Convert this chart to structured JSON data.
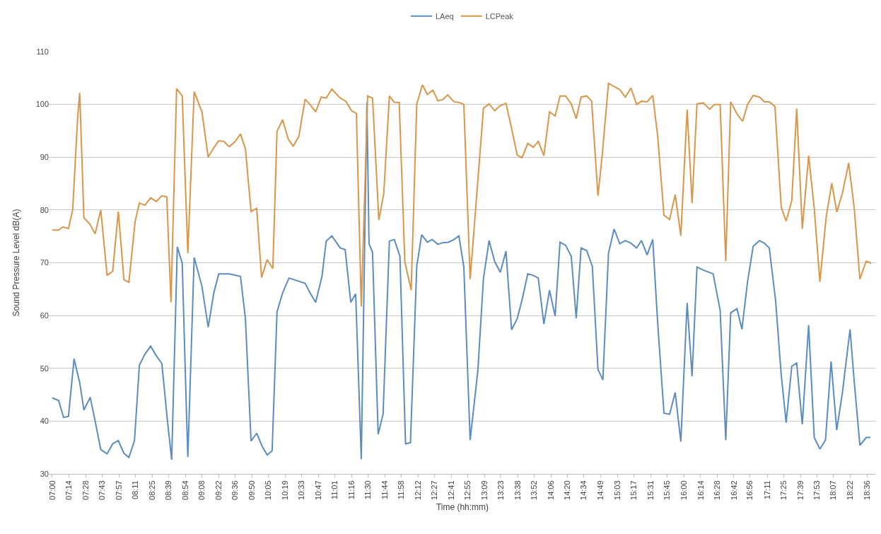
{
  "chart_data": {
    "type": "line",
    "xlabel": "Time (hh:mm)",
    "ylabel": "Sound Pressure Level dB(A)",
    "ylim": [
      30,
      110
    ],
    "yticks": [
      30,
      40,
      50,
      60,
      70,
      80,
      90,
      100,
      110
    ],
    "xlim": [
      6.96,
      18.72
    ],
    "xticks": [
      {
        "value": 7,
        "label": "07:00"
      },
      {
        "value": 7.2367,
        "label": "07:14"
      },
      {
        "value": 7.4735,
        "label": "07:28"
      },
      {
        "value": 7.7102,
        "label": "07:43"
      },
      {
        "value": 7.9469,
        "label": "07:57"
      },
      {
        "value": 8.1837,
        "label": "08:11"
      },
      {
        "value": 8.4204,
        "label": "08:25"
      },
      {
        "value": 8.6571,
        "label": "08:39"
      },
      {
        "value": 8.8939,
        "label": "08:54"
      },
      {
        "value": 9.1306,
        "label": "09:08"
      },
      {
        "value": 9.3673,
        "label": "09:22"
      },
      {
        "value": 9.6041,
        "label": "09:36"
      },
      {
        "value": 9.8408,
        "label": "09:50"
      },
      {
        "value": 10.0776,
        "label": "10:05"
      },
      {
        "value": 10.3143,
        "label": "10:19"
      },
      {
        "value": 10.551,
        "label": "10:33"
      },
      {
        "value": 10.7878,
        "label": "10:47"
      },
      {
        "value": 11.0245,
        "label": "11:01"
      },
      {
        "value": 11.2612,
        "label": "11:16"
      },
      {
        "value": 11.498,
        "label": "11:30"
      },
      {
        "value": 11.7347,
        "label": "11:44"
      },
      {
        "value": 11.9714,
        "label": "11:58"
      },
      {
        "value": 12.2082,
        "label": "12:12"
      },
      {
        "value": 12.4449,
        "label": "12:27"
      },
      {
        "value": 12.6816,
        "label": "12:41"
      },
      {
        "value": 12.9184,
        "label": "12:55"
      },
      {
        "value": 13.1551,
        "label": "13:09"
      },
      {
        "value": 13.3833,
        "label": "13:23"
      },
      {
        "value": 13.6286,
        "label": "13:38"
      },
      {
        "value": 13.8653,
        "label": "13:52"
      },
      {
        "value": 14.102,
        "label": "14:06"
      },
      {
        "value": 14.3388,
        "label": "14:20"
      },
      {
        "value": 14.5667,
        "label": "14:34"
      },
      {
        "value": 14.8122,
        "label": "14:49"
      },
      {
        "value": 15.049,
        "label": "15:03"
      },
      {
        "value": 15.2857,
        "label": "15:17"
      },
      {
        "value": 15.5224,
        "label": "15:31"
      },
      {
        "value": 15.75,
        "label": "15:45"
      },
      {
        "value": 15.9959,
        "label": "16:00"
      },
      {
        "value": 16.2327,
        "label": "16:14"
      },
      {
        "value": 16.4694,
        "label": "16:28"
      },
      {
        "value": 16.7061,
        "label": "16:42"
      },
      {
        "value": 16.9333,
        "label": "16:56"
      },
      {
        "value": 17.1796,
        "label": "17:11"
      },
      {
        "value": 17.4163,
        "label": "17:25"
      },
      {
        "value": 17.6531,
        "label": "17:39"
      },
      {
        "value": 17.8898,
        "label": "17:53"
      },
      {
        "value": 18.1167,
        "label": "18:07"
      },
      {
        "value": 18.3633,
        "label": "18:22"
      },
      {
        "value": 18.6,
        "label": "18:36"
      }
    ],
    "grid": "y",
    "legend": "top",
    "marker": "none",
    "line_style": "solid",
    "series": [
      {
        "name": "LAeq",
        "color": "#5b8cc0",
        "x": [
          7.0,
          7.09,
          7.16,
          7.23,
          7.31,
          7.39,
          7.45,
          7.54,
          7.61,
          7.69,
          7.78,
          7.86,
          7.94,
          8.02,
          8.09,
          8.17,
          8.24,
          8.32,
          8.4,
          8.48,
          8.56,
          8.64,
          8.7,
          8.78,
          8.85,
          8.91,
          8.93,
          9.02,
          9.13,
          9.22,
          9.3,
          9.37,
          9.52,
          9.68,
          9.75,
          9.83,
          9.91,
          9.99,
          10.06,
          10.13,
          10.2,
          10.28,
          10.37,
          10.6,
          10.67,
          10.75,
          10.84,
          10.9,
          10.98,
          11.1,
          11.17,
          11.25,
          11.32,
          11.4,
          11.48,
          11.51,
          11.56,
          11.64,
          11.71,
          11.8,
          11.87,
          11.95,
          12.03,
          12.1,
          12.19,
          12.26,
          12.34,
          12.41,
          12.49,
          12.56,
          12.64,
          12.72,
          12.79,
          12.86,
          12.95,
          13.06,
          13.14,
          13.22,
          13.3,
          13.38,
          13.46,
          13.54,
          13.62,
          13.69,
          13.77,
          13.85,
          13.92,
          14.0,
          14.08,
          14.16,
          14.23,
          14.31,
          14.39,
          14.46,
          14.53,
          14.61,
          14.69,
          14.77,
          14.84,
          14.92,
          15.0,
          15.08,
          15.16,
          15.24,
          15.32,
          15.39,
          15.47,
          15.55,
          15.62,
          15.71,
          15.79,
          15.87,
          15.95,
          16.04,
          16.11,
          16.18,
          16.27,
          16.41,
          16.51,
          16.59,
          16.66,
          16.75,
          16.82,
          16.9,
          16.98,
          17.07,
          17.14,
          17.21,
          17.3,
          17.38,
          17.45,
          17.53,
          17.6,
          17.68,
          17.77,
          17.85,
          17.93,
          18.01,
          18.09,
          18.17,
          18.25,
          18.36,
          18.42,
          18.5,
          18.59,
          18.65
        ],
        "values": [
          44.4,
          43.9,
          40.7,
          40.9,
          51.8,
          47.3,
          42.1,
          44.5,
          40,
          34.6,
          33.8,
          35.7,
          36.3,
          33.9,
          33.1,
          36.3,
          50.6,
          52.7,
          54.2,
          52.4,
          50.9,
          40,
          32.7,
          73,
          69.9,
          41.9,
          33.2,
          71,
          65.6,
          57.8,
          64.3,
          67.9,
          67.9,
          67.4,
          59.4,
          36.2,
          37.7,
          35.2,
          33.6,
          34.4,
          60.7,
          64.3,
          67.1,
          66.1,
          64.3,
          62.5,
          67.4,
          74.1,
          75.1,
          72.8,
          72.5,
          62.5,
          64.1,
          32.8,
          100.4,
          73.6,
          72,
          37.5,
          41.3,
          74.1,
          74.4,
          71.2,
          35.7,
          35.9,
          69.4,
          75.3,
          73.9,
          74.4,
          73.5,
          73.8,
          73.9,
          74.4,
          75.1,
          69.2,
          36.4,
          49.6,
          67.1,
          74.2,
          70.2,
          68.2,
          72.2,
          57.3,
          59.4,
          63,
          67.9,
          67.6,
          67.1,
          58.4,
          64.8,
          59.9,
          73.9,
          73.3,
          71.2,
          59.5,
          72.8,
          72.3,
          69.3,
          49.8,
          47.8,
          71.8,
          76.4,
          73.6,
          74.2,
          73.7,
          72.8,
          74.2,
          71.5,
          74.4,
          58.7,
          41.5,
          41.3,
          45.4,
          36.1,
          62.4,
          48.5,
          69.2,
          68.6,
          67.9,
          61,
          36.4,
          60.5,
          61.3,
          57.4,
          66.4,
          73.1,
          74.2,
          73.7,
          72.8,
          62.8,
          48.7,
          39.7,
          50.4,
          51,
          39.4,
          58.2,
          36.9,
          34.7,
          36.4,
          51.3,
          38.3,
          45.3,
          57.4,
          47.4,
          35.4,
          36.9,
          36.9
        ]
      },
      {
        "name": "LCPeak",
        "color": "#d9964a",
        "x": [
          7.0,
          7.09,
          7.15,
          7.23,
          7.29,
          7.36,
          7.39,
          7.45,
          7.53,
          7.61,
          7.69,
          7.78,
          7.86,
          7.94,
          8.02,
          8.09,
          8.18,
          8.24,
          8.32,
          8.4,
          8.48,
          8.56,
          8.63,
          8.69,
          8.77,
          8.85,
          8.93,
          9.02,
          9.13,
          9.22,
          9.29,
          9.37,
          9.44,
          9.52,
          9.6,
          9.68,
          9.75,
          9.83,
          9.91,
          9.98,
          10.06,
          10.14,
          10.2,
          10.28,
          10.36,
          10.43,
          10.51,
          10.6,
          10.68,
          10.75,
          10.83,
          10.9,
          10.98,
          11.1,
          11.18,
          11.26,
          11.33,
          11.4,
          11.49,
          11.56,
          11.65,
          11.72,
          11.8,
          11.87,
          11.94,
          12.02,
          12.11,
          12.19,
          12.27,
          12.34,
          12.42,
          12.49,
          12.56,
          12.63,
          12.72,
          12.79,
          12.86,
          12.95,
          13.14,
          13.22,
          13.3,
          13.37,
          13.46,
          13.54,
          13.62,
          13.69,
          13.77,
          13.85,
          13.92,
          14.0,
          14.08,
          14.16,
          14.23,
          14.31,
          14.39,
          14.46,
          14.53,
          14.61,
          14.68,
          14.77,
          14.83,
          14.92,
          15.01,
          15.08,
          15.16,
          15.24,
          15.32,
          15.39,
          15.47,
          15.55,
          15.62,
          15.71,
          15.79,
          15.87,
          15.95,
          16.04,
          16.11,
          16.18,
          16.27,
          16.36,
          16.43,
          16.51,
          16.59,
          16.66,
          16.75,
          16.83,
          16.9,
          16.98,
          17.07,
          17.14,
          17.21,
          17.29,
          17.38,
          17.45,
          17.53,
          17.6,
          17.68,
          17.77,
          17.85,
          17.93,
          18.02,
          18.1,
          18.17,
          18.25,
          18.34,
          18.42,
          18.5,
          18.59,
          18.66
        ],
        "values": [
          76.2,
          76.2,
          76.8,
          76.5,
          80,
          97.3,
          102.2,
          78.5,
          77.4,
          75.5,
          80,
          67.6,
          68.4,
          79.7,
          66.8,
          66.3,
          77.9,
          81.3,
          80.9,
          82.3,
          81.6,
          82.7,
          82.5,
          62.5,
          103,
          101.6,
          71.8,
          102.4,
          98.6,
          90,
          91.6,
          93.1,
          93,
          92,
          92.9,
          94.4,
          91.6,
          79.7,
          80.3,
          67.2,
          70.6,
          68.9,
          94.9,
          97.1,
          93.4,
          92.1,
          93.9,
          101,
          99.8,
          98.6,
          101.4,
          101.2,
          102.9,
          101.2,
          100.6,
          98.8,
          98.3,
          61.7,
          101.6,
          101.2,
          78.1,
          83.1,
          101.6,
          100.4,
          100.4,
          70.2,
          64.8,
          100.1,
          103.7,
          101.9,
          102.7,
          100.7,
          100.9,
          101.8,
          100.5,
          100.4,
          100,
          66.9,
          99.3,
          100.1,
          98.8,
          99.7,
          100.2,
          95.5,
          90.4,
          89.9,
          92.6,
          91.9,
          93,
          90.3,
          98.6,
          97.8,
          101.6,
          101.6,
          100.1,
          97.3,
          101.4,
          101.6,
          100.6,
          82.7,
          90.3,
          104,
          103.3,
          102.8,
          101.4,
          103.1,
          100,
          100.6,
          100.5,
          101.7,
          94.1,
          79,
          78.2,
          82.9,
          75.1,
          99,
          81.3,
          100.1,
          100.3,
          99.1,
          100,
          100,
          70.3,
          100.5,
          98.2,
          96.8,
          100,
          101.7,
          101.4,
          100.5,
          100.5,
          99.6,
          80.5,
          77.9,
          81.8,
          99.2,
          76.4,
          90.3,
          80.3,
          66.4,
          78.7,
          85.1,
          79.6,
          83.1,
          88.9,
          80.3,
          66.9,
          70.3,
          69.9
        ]
      }
    ]
  }
}
